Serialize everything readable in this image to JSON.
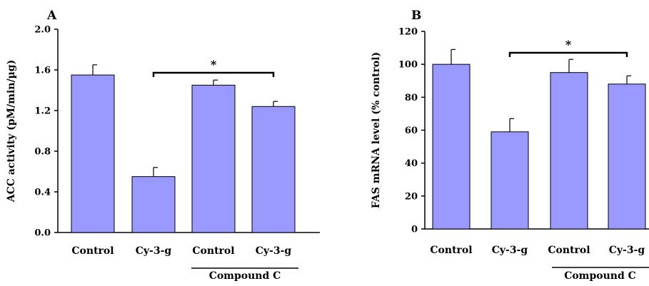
{
  "chart_data": [
    {
      "type": "bar",
      "panel_label": "A",
      "categories": [
        "Control",
        "Cy-3-g",
        "Control",
        "Cy-3-g"
      ],
      "series": [
        {
          "values": [
            1.55,
            0.55,
            1.45,
            1.24
          ]
        }
      ],
      "error_bars": [
        0.1,
        0.09,
        0.05,
        0.05
      ],
      "ylabel": "ACC activity (pM/min/µg)",
      "ylim": [
        0,
        2.0
      ],
      "yticks": [
        "0.0",
        "0.4",
        "0.8",
        "1.2",
        "1.6",
        "2.0"
      ],
      "group_label": "Compound C",
      "significance": {
        "from_category": 1,
        "to_category": 3,
        "label": "*"
      },
      "bar_color": "#9999ff",
      "grid": false
    },
    {
      "type": "bar",
      "panel_label": "B",
      "categories": [
        "Control",
        "Cy-3-g",
        "Control",
        "Cy-3-g"
      ],
      "series": [
        {
          "values": [
            100,
            59,
            95,
            88
          ]
        }
      ],
      "error_bars": [
        9,
        8,
        8,
        5
      ],
      "ylabel": "FAS mRNA level (% control)",
      "ylim": [
        0,
        120
      ],
      "yticks": [
        "0",
        "20",
        "40",
        "60",
        "80",
        "100",
        "120"
      ],
      "group_label": "Compound C",
      "significance": {
        "from_category": 1,
        "to_category": 3,
        "label": "*"
      },
      "bar_color": "#9999ff",
      "grid": false
    }
  ]
}
